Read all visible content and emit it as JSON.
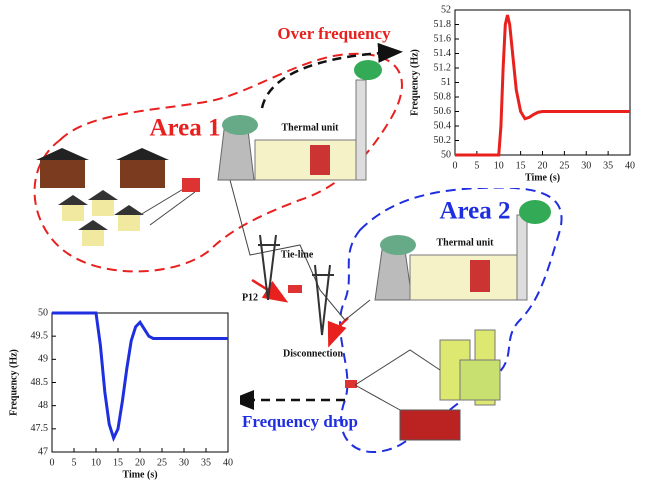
{
  "diagram": {
    "over_frequency": "Over frequency",
    "area1": "Area 1",
    "thermal_unit_1": "Thermal unit",
    "area2": "Area 2",
    "thermal_unit_2": "Thermal unit",
    "tie_line": "Tie-line",
    "p12": "P12",
    "disconnection": "Disconnection",
    "frequency_drop": "Frequency drop"
  },
  "chart_data": [
    {
      "type": "line",
      "xlabel": "Time (s)",
      "ylabel": "Frequency (Hz)",
      "color": "#e8211f",
      "x": [
        0,
        10,
        10.5,
        11,
        11.5,
        12,
        12.5,
        13,
        14,
        15,
        16,
        17,
        18,
        19,
        20,
        22,
        25,
        30,
        35,
        40
      ],
      "values": [
        50,
        50,
        50.4,
        51.2,
        51.8,
        51.93,
        51.8,
        51.5,
        50.9,
        50.6,
        50.5,
        50.52,
        50.56,
        50.59,
        50.6,
        50.6,
        50.6,
        50.6,
        50.6,
        50.6
      ],
      "xlim": [
        0,
        40
      ],
      "xticks": [
        0,
        5,
        10,
        15,
        20,
        25,
        30,
        35,
        40
      ],
      "ylim": [
        50,
        52
      ],
      "yticks": [
        50,
        50.2,
        50.4,
        50.6,
        50.8,
        51,
        51.2,
        51.4,
        51.6,
        51.8,
        52
      ]
    },
    {
      "type": "line",
      "xlabel": "Time (s)",
      "ylabel": "Frequency (Hz)",
      "color": "#1f2fe0",
      "x": [
        0,
        10,
        11,
        12,
        13,
        14,
        15,
        16,
        17,
        18,
        19,
        20,
        21,
        22,
        23,
        25,
        30,
        35,
        40
      ],
      "values": [
        50,
        50,
        49.3,
        48.3,
        47.6,
        47.3,
        47.5,
        48.1,
        48.8,
        49.4,
        49.7,
        49.8,
        49.65,
        49.5,
        49.45,
        49.45,
        49.45,
        49.45,
        49.45
      ],
      "xlim": [
        0,
        40
      ],
      "xticks": [
        0,
        5,
        10,
        15,
        20,
        25,
        30,
        35,
        40
      ],
      "ylim": [
        47,
        50
      ],
      "yticks": [
        47,
        47.5,
        48,
        48.5,
        49,
        49.5,
        50
      ]
    }
  ]
}
